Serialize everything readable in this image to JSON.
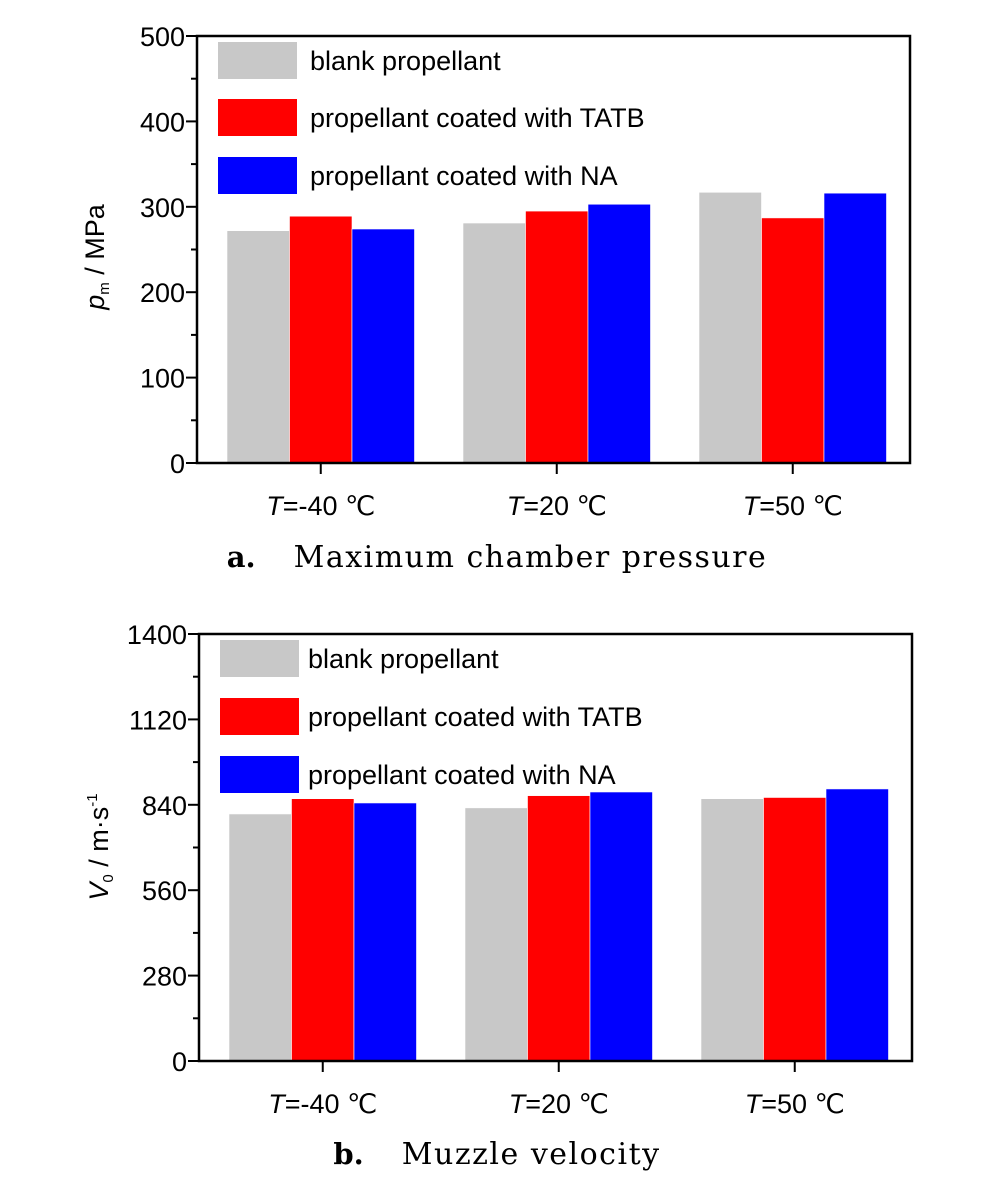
{
  "chart_data": [
    {
      "type": "bar",
      "panel_letter": "a.",
      "caption": "Maximum chamber pressure",
      "ylabel_sym": "p",
      "ylabel_sub": "m",
      "ylabel_rest": " / MPa",
      "ylim": [
        0,
        500
      ],
      "yticks": [
        "0",
        "100",
        "200",
        "300",
        "400",
        "500"
      ],
      "categories": [
        {
          "var": "T",
          "rest": "=-40 ℃"
        },
        {
          "var": "T",
          "rest": "=20 ℃"
        },
        {
          "var": "T",
          "rest": "=50 ℃"
        }
      ],
      "series": [
        {
          "name": "blank propellant",
          "color": "#c8c8c8",
          "values": [
            272,
            281,
            317
          ]
        },
        {
          "name": "propellant coated with TATB",
          "color": "#ff0000",
          "values": [
            289,
            295,
            287
          ]
        },
        {
          "name": "propellant coated with NA",
          "color": "#0000ff",
          "values": [
            274,
            303,
            316
          ]
        }
      ],
      "legend_position": "top-left",
      "grid": false
    },
    {
      "type": "bar",
      "panel_letter": "b.",
      "caption": "Muzzle velocity",
      "ylabel_sym": "V",
      "ylabel_sub": "0",
      "ylabel_rest": " / m·s",
      "ylabel_sup": "-1",
      "ylim": [
        0,
        1400
      ],
      "yticks": [
        "0",
        "280",
        "560",
        "840",
        "1120",
        "1400"
      ],
      "categories": [
        {
          "var": "T",
          "rest": "=-40 ℃"
        },
        {
          "var": "T",
          "rest": "=20 ℃"
        },
        {
          "var": "T",
          "rest": "=50 ℃"
        }
      ],
      "series": [
        {
          "name": "blank propellant",
          "color": "#c8c8c8",
          "values": [
            810,
            830,
            860
          ]
        },
        {
          "name": "propellant coated with TATB",
          "color": "#ff0000",
          "values": [
            860,
            870,
            864
          ]
        },
        {
          "name": "propellant coated with NA",
          "color": "#0000ff",
          "values": [
            846,
            882,
            892
          ]
        }
      ],
      "legend_position": "top-left",
      "grid": false
    }
  ]
}
